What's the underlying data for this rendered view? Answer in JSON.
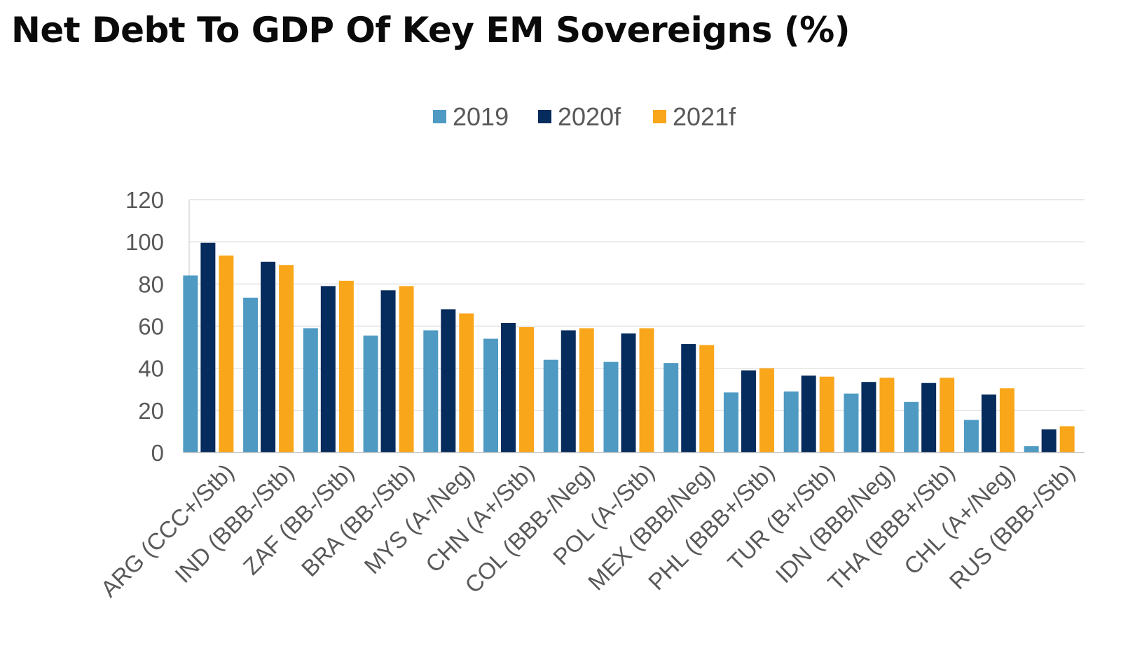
{
  "chart_data": {
    "type": "bar",
    "title": "Net Debt To GDP Of Key EM Sovereigns (%)",
    "xlabel": "",
    "ylabel": "",
    "ylim": [
      0,
      120
    ],
    "yticks": [
      0,
      20,
      40,
      60,
      80,
      100,
      120
    ],
    "grid": true,
    "legend_position": "top-center",
    "categories": [
      "ARG (CCC+/Stb)",
      "IND (BBB-/Stb)",
      "ZAF (BB-/Stb)",
      "BRA (BB-/Stb)",
      "MYS (A-/Neg)",
      "CHN (A+/Stb)",
      "COL (BBB-/Neg)",
      "POL (A-/Stb)",
      "MEX (BBB/Neg)",
      "PHL (BBB+/Stb)",
      "TUR (B+/Stb)",
      "IDN (BBB/Neg)",
      "THA (BBB+/Stb)",
      "CHL (A+/Neg)",
      "RUS (BBB-/Stb)"
    ],
    "series": [
      {
        "name": "2019",
        "color": "#4E9AC3",
        "values": [
          84,
          73.5,
          59,
          55.5,
          58,
          54,
          44,
          43,
          42.5,
          28.5,
          29,
          28,
          24,
          15.5,
          3
        ]
      },
      {
        "name": "2020f",
        "color": "#062B5D",
        "values": [
          99.5,
          90.5,
          79,
          77,
          68,
          61.5,
          58,
          56.5,
          51.5,
          39,
          36.5,
          33.5,
          33,
          27.5,
          11
        ]
      },
      {
        "name": "2021f",
        "color": "#F9A61B",
        "values": [
          93.5,
          89,
          81.5,
          79,
          66,
          59.5,
          59,
          59,
          51,
          40,
          36,
          35.5,
          35.5,
          30.5,
          12.5
        ]
      }
    ]
  }
}
